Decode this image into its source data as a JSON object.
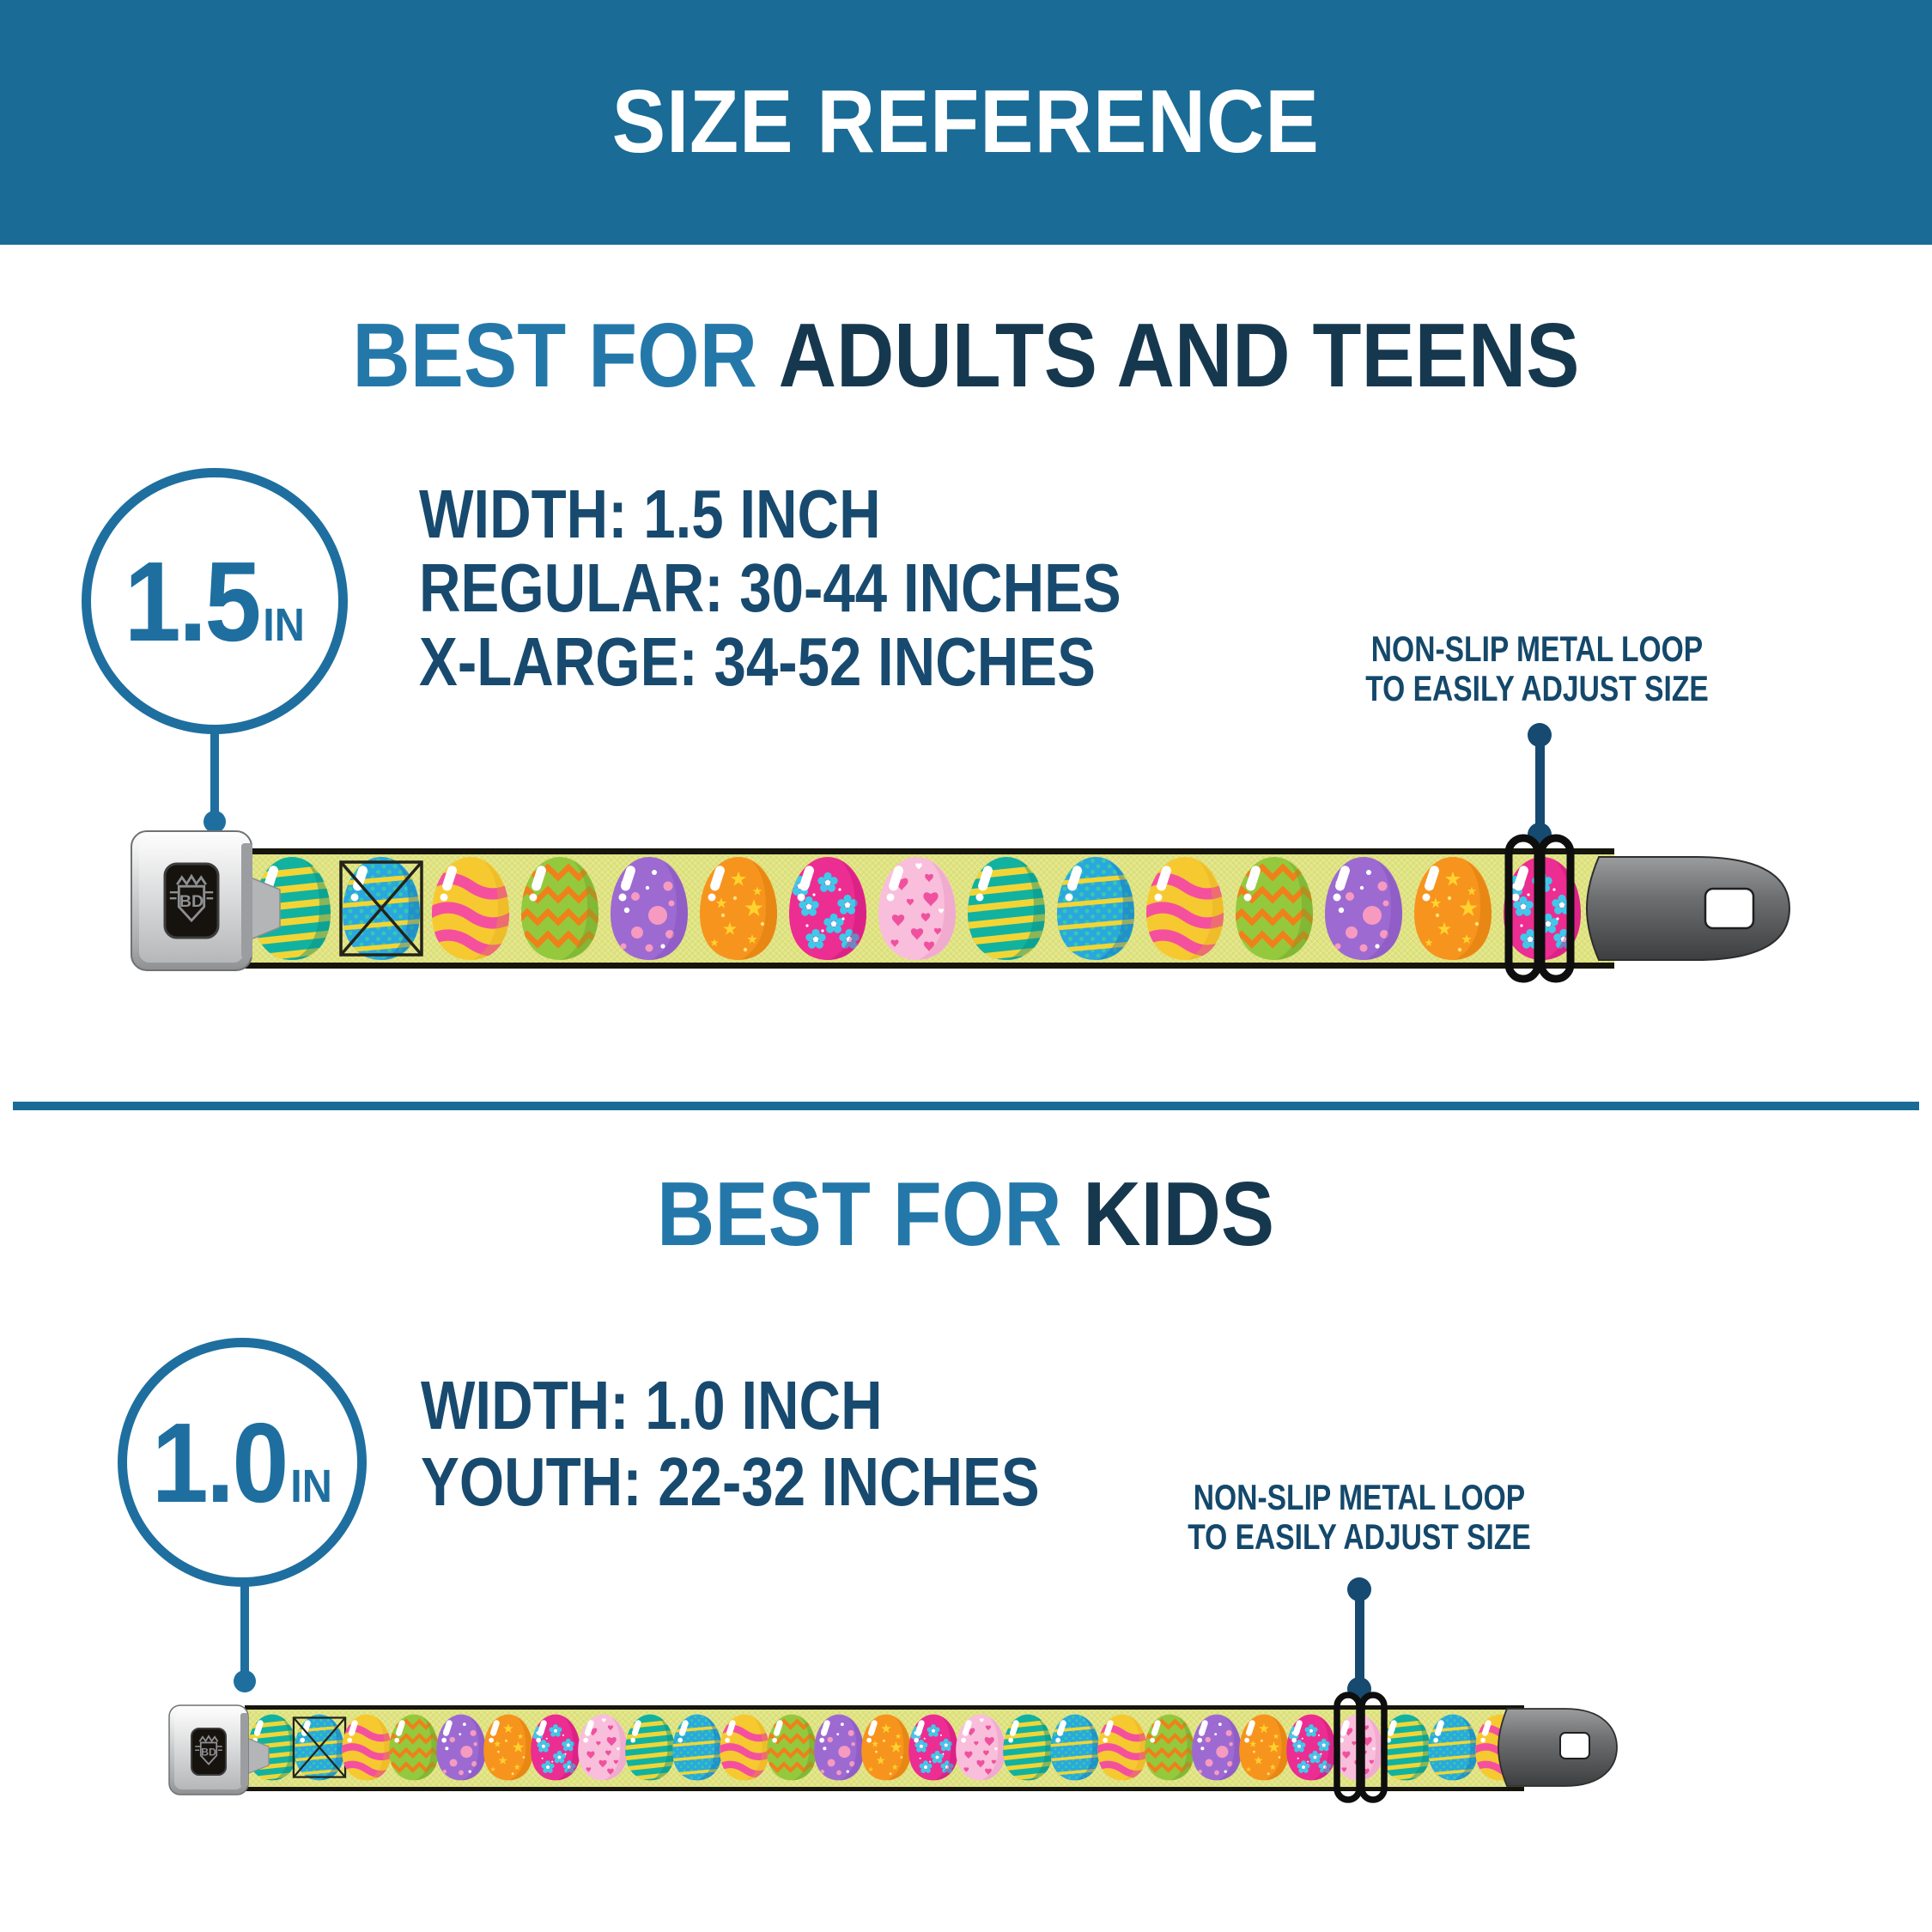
{
  "header": {
    "title": "SIZE REFERENCE"
  },
  "sections": [
    {
      "heading_light": "BEST FOR",
      "heading_dark": "ADULTS AND TEENS",
      "badge_value": "1.5",
      "badge_unit": "IN",
      "specs": [
        "WIDTH: 1.5 INCH",
        "REGULAR: 30-44 INCHES",
        "X-LARGE: 34-52 INCHES"
      ],
      "callout": [
        "NON-SLIP METAL LOOP",
        "TO EASILY ADJUST SIZE"
      ]
    },
    {
      "heading_light": "BEST FOR",
      "heading_dark": "KIDS",
      "badge_value": "1.0",
      "badge_unit": "IN",
      "specs": [
        "WIDTH: 1.0 INCH",
        "YOUTH: 22-32 INCHES"
      ],
      "callout": [
        "NON-SLIP METAL LOOP",
        "TO EASILY ADJUST SIZE"
      ]
    }
  ],
  "belt": {
    "buckle_logo": "BD",
    "strap_color": "#e0e47f",
    "egg_cycle": [
      "teal-stripes",
      "blue-stripes-dots",
      "yellow-pink-waves",
      "green-orange-zigzag",
      "purple-dots",
      "orange-stars",
      "magenta-flowers",
      "pink-hearts"
    ],
    "egg_palette": {
      "teal-stripes": "#12b2a0",
      "blue-stripes-dots": "#2ba7e0",
      "yellow-pink-waves": "#f7c931",
      "green-orange-zigzag": "#94c93e",
      "purple-dots": "#9d6ad2",
      "orange-stars": "#f7941e",
      "magenta-flowers": "#ec2d92",
      "pink-hearts": "#f9bedb"
    }
  },
  "colors": {
    "banner_blue": "#1a6b96",
    "heading_light_blue": "#2478a9",
    "heading_dark_navy": "#16384f",
    "spec_text_navy": "#174a6e",
    "callout_navy": "#14486b",
    "badge_blue": "#1e6f9f",
    "connector_navy": "#164a70"
  }
}
